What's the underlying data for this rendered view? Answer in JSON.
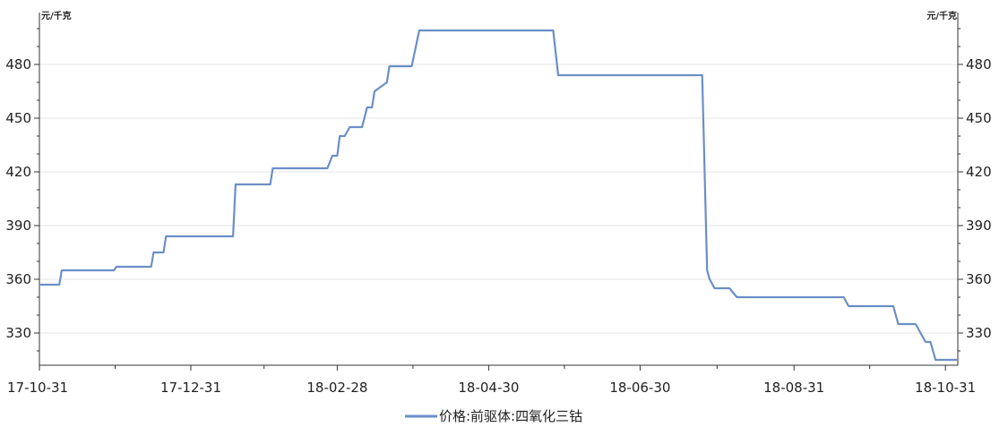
{
  "chart_data": {
    "type": "line",
    "title": "",
    "y_unit_left": "元/千克",
    "y_unit_right": "元/千克",
    "ylim": [
      312,
      507
    ],
    "yticks": [
      330,
      360,
      390,
      420,
      450,
      480
    ],
    "ytick_labels": [
      "330",
      "360",
      "390",
      "420",
      "450",
      "480"
    ],
    "xlim": [
      "2017-10-31",
      "2018-11-05"
    ],
    "xticks": [
      "2017-10-31",
      "2017-12-31",
      "2018-02-28",
      "2018-04-30",
      "2018-06-30",
      "2018-08-31",
      "2018-10-31"
    ],
    "xtick_labels": [
      "17-10-31",
      "17-12-31",
      "18-02-28",
      "18-04-30",
      "18-06-30",
      "18-08-31",
      "18-10-31"
    ],
    "grid": true,
    "legend_position": "bottom-center",
    "series": [
      {
        "name": "价格:前驱体:四氧化三钴",
        "color": "#6b8fc7",
        "x": [
          "2017-10-31",
          "2017-11-08",
          "2017-11-09",
          "2017-11-30",
          "2017-12-01",
          "2017-12-15",
          "2017-12-16",
          "2017-12-20",
          "2017-12-21",
          "2018-01-17",
          "2018-01-18",
          "2018-02-01",
          "2018-02-02",
          "2018-02-24",
          "2018-02-26",
          "2018-02-28",
          "2018-03-01",
          "2018-03-03",
          "2018-03-05",
          "2018-03-10",
          "2018-03-12",
          "2018-03-14",
          "2018-03-15",
          "2018-03-18",
          "2018-03-20",
          "2018-03-21",
          "2018-03-22",
          "2018-03-30",
          "2018-04-02",
          "2018-05-26",
          "2018-05-28",
          "2018-07-25",
          "2018-07-27",
          "2018-07-28",
          "2018-07-30",
          "2018-08-05",
          "2018-08-08",
          "2018-09-20",
          "2018-09-22",
          "2018-10-03",
          "2018-10-05",
          "2018-10-10",
          "2018-10-12",
          "2018-10-17",
          "2018-10-19",
          "2018-10-23",
          "2018-10-25",
          "2018-10-27",
          "2018-11-05"
        ],
        "values": [
          357,
          357,
          365,
          365,
          367,
          367,
          375,
          375,
          384,
          384,
          413,
          413,
          422,
          422,
          429,
          429,
          440,
          440,
          445,
          445,
          456,
          456,
          465,
          468,
          470,
          479,
          479,
          479,
          499,
          499,
          474,
          474,
          365,
          360,
          355,
          355,
          350,
          350,
          345,
          345,
          345,
          345,
          335,
          335,
          335,
          325,
          325,
          315,
          315
        ]
      }
    ]
  }
}
